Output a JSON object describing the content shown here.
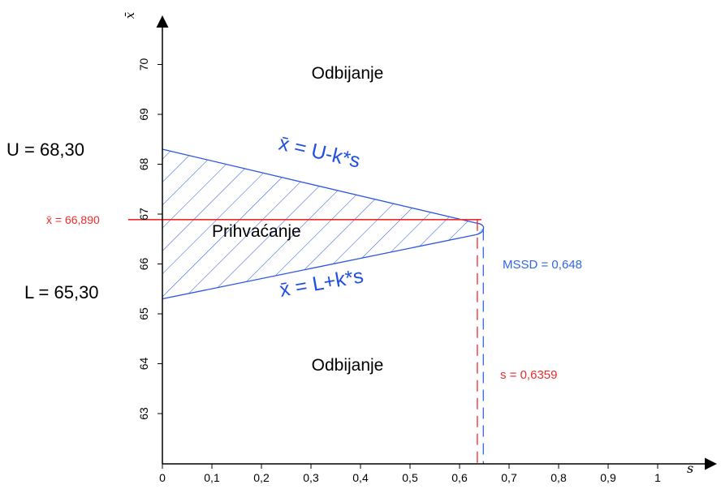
{
  "chart_data": {
    "type": "acceptance-region",
    "x_axis": {
      "label": "s",
      "ticks": [
        "0",
        "0,1",
        "0,2",
        "0,3",
        "0,4",
        "0,5",
        "0,6",
        "0,7",
        "0,8",
        "0,9",
        "1"
      ],
      "range": [
        0,
        1
      ]
    },
    "y_axis": {
      "label": "x̄",
      "ticks": [
        "63",
        "64",
        "65",
        "66",
        "67",
        "68",
        "69",
        "70"
      ],
      "range": [
        62.2,
        70.9
      ]
    },
    "limits": {
      "upper": {
        "value": 68.3,
        "label": "U = 68,30"
      },
      "lower": {
        "value": 65.3,
        "label": "L = 65,30"
      }
    },
    "lines": [
      {
        "name": "upper_line",
        "equation": "x̄ = U-k*s",
        "points": [
          [
            0,
            68.3
          ],
          [
            0.648,
            66.8
          ]
        ]
      },
      {
        "name": "lower_line",
        "equation": "x̄ = L+k*s",
        "points": [
          [
            0,
            65.3
          ],
          [
            0.648,
            66.6
          ]
        ]
      }
    ],
    "regions": {
      "accept": "Prihvaćanje",
      "reject_top": "Odbijanje",
      "reject_bottom": "Odbijanje"
    },
    "markers": {
      "xbar": {
        "value": 66.89,
        "label": "x̄ = 66,890",
        "color": "#ee2a2a"
      },
      "s": {
        "value": 0.6359,
        "label": "s = 0,6359",
        "color": "#ee2a2a"
      },
      "mssd": {
        "value": 0.648,
        "label": "MSSD = 0,648",
        "color": "#2f66e8"
      }
    },
    "colors": {
      "curve": "#2a55e0",
      "hatch": "#2a55e0",
      "marker_red": "#ee2a2a",
      "marker_blue": "#2f66e8"
    }
  }
}
